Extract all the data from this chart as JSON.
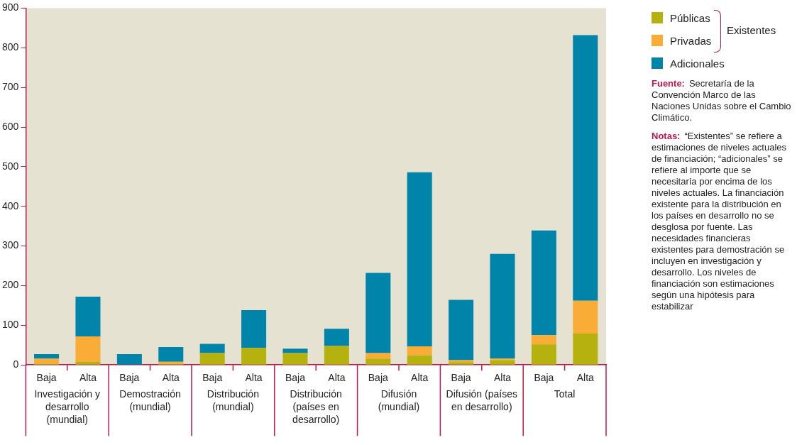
{
  "chart_data": {
    "type": "bar",
    "stacked": true,
    "categories": [
      "Baja",
      "Alta",
      "Baja",
      "Alta",
      "Baja",
      "Alta",
      "Baja",
      "Alta",
      "Baja",
      "Alta",
      "Baja",
      "Alta",
      "Baja",
      "Alta"
    ],
    "series": [
      {
        "name": "Públicas",
        "color": "#b5b10f",
        "values": [
          3,
          8,
          0,
          3,
          30,
          43,
          30,
          48,
          16,
          24,
          7,
          12,
          52,
          79
        ]
      },
      {
        "name": "Privadas",
        "color": "#f9ad36",
        "values": [
          13,
          64,
          0,
          5,
          0,
          0,
          0,
          0,
          14,
          23,
          5,
          4,
          23,
          83
        ]
      },
      {
        "name": "Adicionales",
        "color": "#0084aa",
        "values": [
          11,
          100,
          27,
          37,
          23,
          95,
          11,
          43,
          202,
          439,
          152,
          264,
          264,
          670
        ]
      }
    ],
    "legend_title": "Existentes",
    "ylim": [
      0,
      900
    ],
    "yticks": [
      0,
      100,
      200,
      300,
      400,
      500,
      600,
      700,
      800,
      900
    ],
    "grid": false,
    "legend": "top right",
    "annotations": [
      "Investigación y desarrollo (mundial)",
      "Demostración (mundial)",
      "Distribución (mundial)",
      "Distribución (países en desarrollo)",
      "Difusión (mundial)",
      "Difusión (países en desarrollo)",
      "Total",
      "Fuente: Secretaría de la Convención Marco de las Naciones Unidas sobre el Cambio Climático.",
      "Notas: “Existentes” se refiere a estimaciones de niveles actuales de financiación; “adicionales” se refiere al importe que se necesitaría por encima de los niveles actuales. La financiación existente para la distribución en los países en desarrollo no se desglosa por fuente. Las necesidades financieras existentes para demostración se incluyen en investigación y desarrollo. Los niveles de financiación son estimaciones según una hipótesis para estabilizar"
    ]
  }
}
